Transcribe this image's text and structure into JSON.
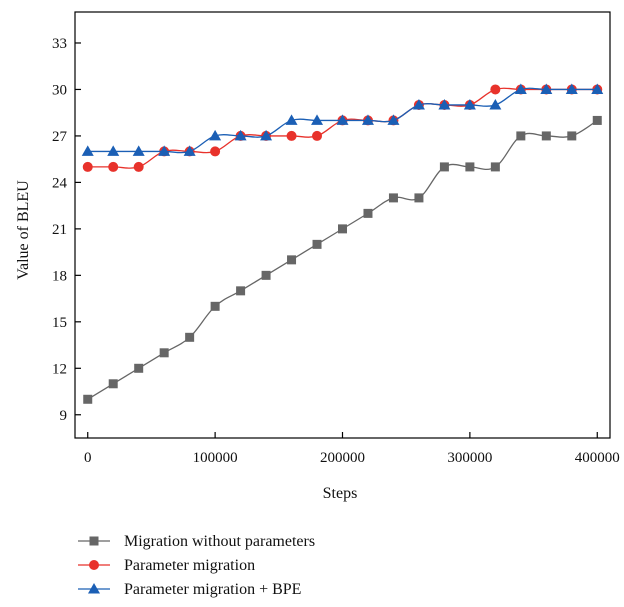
{
  "chart_data": {
    "type": "line",
    "title": "",
    "xlabel": "Steps",
    "ylabel": "Value of BLEU",
    "xlim": [
      -10000,
      410000
    ],
    "ylim": [
      7.5,
      35
    ],
    "x_ticks": [
      0,
      100000,
      200000,
      300000,
      400000
    ],
    "x_tick_labels": [
      "0",
      "100000",
      "200000",
      "300000",
      "400000"
    ],
    "y_ticks": [
      9,
      12,
      15,
      18,
      21,
      24,
      27,
      30,
      33
    ],
    "y_tick_labels": [
      "9",
      "12",
      "15",
      "18",
      "21",
      "24",
      "27",
      "30",
      "33"
    ],
    "grid": false,
    "legend_position": "bottom",
    "x": [
      0,
      20000,
      40000,
      60000,
      80000,
      100000,
      120000,
      140000,
      160000,
      180000,
      200000,
      220000,
      240000,
      260000,
      280000,
      300000,
      320000,
      340000,
      360000,
      380000,
      400000
    ],
    "series": [
      {
        "name": "Migration without parameters",
        "color": "#666666",
        "marker": "square",
        "values": [
          10,
          11,
          12,
          13,
          14,
          16,
          17,
          18,
          19,
          20,
          21,
          22,
          23,
          23,
          25,
          25,
          25,
          27,
          27,
          27,
          28
        ]
      },
      {
        "name": "Parameter migration",
        "color": "#e8322b",
        "marker": "circle",
        "values": [
          25,
          25,
          25,
          26,
          26,
          26,
          27,
          27,
          27,
          27,
          28,
          28,
          28,
          29,
          29,
          29,
          30,
          30,
          30,
          30,
          30
        ]
      },
      {
        "name": "Parameter migration + BPE",
        "color": "#1b5fb5",
        "marker": "triangle",
        "values": [
          26,
          26,
          26,
          26,
          26,
          27,
          27,
          27,
          28,
          28,
          28,
          28,
          28,
          29,
          29,
          29,
          29,
          30,
          30,
          30,
          30
        ]
      }
    ]
  }
}
